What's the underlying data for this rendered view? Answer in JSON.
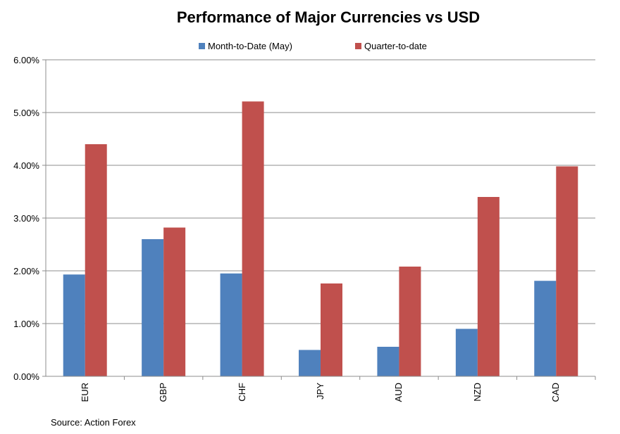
{
  "chart_data": {
    "type": "bar",
    "title": "Performance of Major Currencies vs USD",
    "categories": [
      "EUR",
      "GBP",
      "CHF",
      "JPY",
      "AUD",
      "NZD",
      "CAD"
    ],
    "series": [
      {
        "name": "Month-to-Date (May)",
        "color": "#4f81bd",
        "values": [
          1.93,
          2.6,
          1.95,
          0.5,
          0.56,
          0.9,
          1.81
        ]
      },
      {
        "name": "Quarter-to-date",
        "color": "#c0504d",
        "values": [
          4.4,
          2.82,
          5.21,
          1.76,
          2.08,
          3.4,
          3.98
        ]
      }
    ],
    "ylim": [
      0,
      6
    ],
    "yticks": [
      "0.00%",
      "1.00%",
      "2.00%",
      "3.00%",
      "4.00%",
      "5.00%",
      "6.00%"
    ],
    "xlabel": "",
    "ylabel": "",
    "grid": true,
    "legend_position": "top"
  },
  "source": "Source: Action Forex"
}
